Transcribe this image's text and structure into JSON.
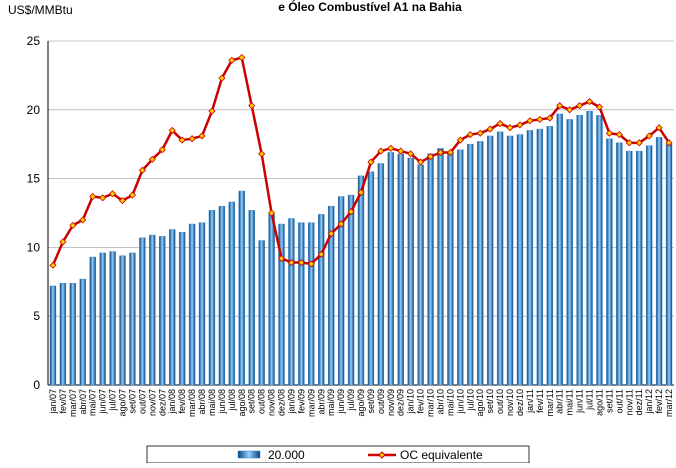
{
  "chart_data": {
    "type": "bar-line",
    "title": "e Óleo Combustível A1 na Bahia",
    "y_label": "US$/MMBtu",
    "categories": [
      "jan/07",
      "fev/07",
      "mar/07",
      "abr/07",
      "mai/07",
      "jun/07",
      "jul/07",
      "ago/07",
      "set/07",
      "out/07",
      "nov/07",
      "dez/07",
      "jan/08",
      "fev/08",
      "mar/08",
      "abr/08",
      "mai/08",
      "jun/08",
      "jul/08",
      "ago/08",
      "set/08",
      "out/08",
      "nov/08",
      "dez/08",
      "jan/09",
      "fev/09",
      "mar/09",
      "abr/09",
      "mai/09",
      "jun/09",
      "jul/09",
      "ago/09",
      "set/09",
      "out/09",
      "nov/09",
      "dez/09",
      "jan/10",
      "fev/10",
      "mar/10",
      "abr/10",
      "mai/10",
      "jun/10",
      "jul/10",
      "ago/10",
      "set/10",
      "out/10",
      "nov/10",
      "dez/10",
      "jan/11",
      "fev/11",
      "mar/11",
      "abr/11",
      "mai/11",
      "jun/11",
      "jul/11",
      "ago/11",
      "set/11",
      "out/11",
      "nov/11",
      "dez/11",
      "jan/12",
      "fev/12",
      "mar/12"
    ],
    "series": [
      {
        "name": "20.000",
        "type": "bar",
        "color": "#2f86cc",
        "values": [
          7.2,
          7.4,
          7.4,
          7.7,
          9.3,
          9.6,
          9.7,
          9.4,
          9.6,
          10.7,
          10.9,
          10.8,
          11.3,
          11.1,
          11.7,
          11.8,
          12.7,
          13.0,
          13.3,
          14.1,
          12.7,
          10.5,
          12.4,
          11.7,
          12.1,
          11.8,
          11.8,
          12.4,
          13.0,
          13.7,
          13.8,
          15.2,
          15.5,
          16.1,
          16.9,
          16.8,
          16.5,
          16.0,
          16.8,
          17.2,
          16.9,
          17.1,
          17.5,
          17.7,
          18.1,
          18.4,
          18.1,
          18.2,
          18.5,
          18.6,
          18.8,
          19.7,
          19.3,
          19.6,
          19.9,
          19.6,
          17.9,
          17.6,
          17.0,
          17.0,
          17.4,
          18.0,
          17.5
        ]
      },
      {
        "name": "OC equivalente",
        "type": "line",
        "color": "#cc0000",
        "marker_color": "#ffcc00",
        "values": [
          8.7,
          10.4,
          11.6,
          12.0,
          13.7,
          13.6,
          13.9,
          13.4,
          13.8,
          15.6,
          16.4,
          17.1,
          18.5,
          17.8,
          17.9,
          18.1,
          19.9,
          22.3,
          23.6,
          23.8,
          20.3,
          16.8,
          12.5,
          9.2,
          8.9,
          8.9,
          8.8,
          9.5,
          11.0,
          11.7,
          12.6,
          14.0,
          16.2,
          17.0,
          17.2,
          17.0,
          16.8,
          16.2,
          16.6,
          16.9,
          16.9,
          17.8,
          18.2,
          18.3,
          18.6,
          19.0,
          18.7,
          18.9,
          19.2,
          19.3,
          19.4,
          20.3,
          20.0,
          20.3,
          20.6,
          20.2,
          18.3,
          18.2,
          17.6,
          17.6,
          18.1,
          18.7,
          17.6
        ]
      }
    ],
    "ylim": [
      0,
      25
    ],
    "yticks": [
      0,
      5,
      10,
      15,
      20,
      25
    ],
    "grid": true
  }
}
